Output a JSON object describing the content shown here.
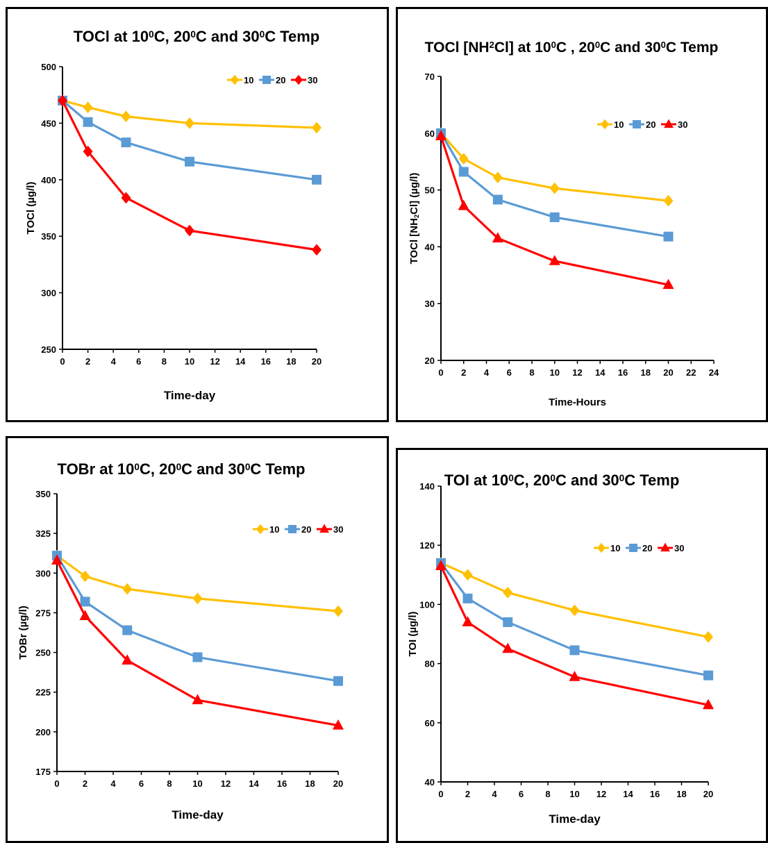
{
  "colors": {
    "s10": "#ffc000",
    "s20": "#5b9bd5",
    "s30": "#ff0000"
  },
  "chart_data": [
    {
      "type": "line",
      "title_parts": [
        "TOCl  at 10",
        "0",
        "C, 20",
        "0",
        "C and 30",
        "0",
        "C Temp"
      ],
      "xlabel": "Time-day",
      "ylabel": "TOCl (µg/l)",
      "xlim": [
        0,
        20
      ],
      "xticks": [
        0,
        2,
        4,
        6,
        8,
        10,
        12,
        14,
        16,
        18,
        20
      ],
      "ylim": [
        250,
        500
      ],
      "yticks": [
        250,
        300,
        350,
        400,
        450,
        500
      ],
      "x": [
        0,
        2,
        5,
        10,
        20
      ],
      "series": [
        {
          "name": "10",
          "values": [
            470,
            464,
            456,
            450,
            446
          ],
          "marker": "diamond"
        },
        {
          "name": "20",
          "values": [
            470,
            451,
            433,
            416,
            400
          ],
          "marker": "square"
        },
        {
          "name": "30",
          "values": [
            470,
            425,
            384,
            355,
            338
          ],
          "marker": "diamond"
        }
      ],
      "legend": "top-right"
    },
    {
      "type": "line",
      "title_parts": [
        "TOCl [NH",
        "2",
        "Cl]  at 10",
        "0",
        "C , 20",
        "0",
        "C and 30",
        "0",
        "C  Temp"
      ],
      "xlabel": "Time-Hours",
      "ylabel_parts": [
        "TOCl [NH",
        "2",
        "Cl] (µg/l)"
      ],
      "xlim": [
        0,
        24
      ],
      "xticks": [
        0,
        2,
        4,
        6,
        8,
        10,
        12,
        14,
        16,
        18,
        20,
        22,
        24
      ],
      "ylim": [
        20,
        70
      ],
      "yticks": [
        20,
        30,
        40,
        50,
        60,
        70
      ],
      "x": [
        0,
        2,
        5,
        10,
        20
      ],
      "series": [
        {
          "name": "10",
          "values": [
            60,
            55.5,
            52.2,
            50.3,
            48.1
          ],
          "marker": "diamond"
        },
        {
          "name": "20",
          "values": [
            60,
            53.2,
            48.3,
            45.2,
            41.8
          ],
          "marker": "square"
        },
        {
          "name": "30",
          "values": [
            59.5,
            47.2,
            41.5,
            37.5,
            33.3
          ],
          "marker": "triangle"
        }
      ],
      "legend": "top-right"
    },
    {
      "type": "line",
      "title_parts": [
        "TOBr at  10",
        "0",
        "C, 20",
        "0",
        "C and 30",
        "0",
        "C Temp"
      ],
      "xlabel": "Time-day",
      "ylabel": "TOBr  (µg/l)",
      "xlim": [
        0,
        20
      ],
      "xticks": [
        0,
        2,
        4,
        6,
        8,
        10,
        12,
        14,
        16,
        18,
        20
      ],
      "ylim": [
        175,
        350
      ],
      "yticks": [
        175,
        200,
        225,
        250,
        275,
        300,
        325,
        350
      ],
      "x": [
        0,
        2,
        5,
        10,
        20
      ],
      "series": [
        {
          "name": "10",
          "values": [
            311,
            298,
            290,
            284,
            276
          ],
          "marker": "diamond"
        },
        {
          "name": "20",
          "values": [
            311,
            282,
            264,
            247,
            232
          ],
          "marker": "square"
        },
        {
          "name": "30",
          "values": [
            308,
            273,
            245,
            220,
            204
          ],
          "marker": "triangle"
        }
      ],
      "legend": "top-right"
    },
    {
      "type": "line",
      "title_parts": [
        "TOI at 10",
        "0",
        "C, 20",
        "0",
        "C and 30",
        "0",
        "C Temp"
      ],
      "xlabel": "Time-day",
      "ylabel": "TOI  (µg/l)",
      "xlim": [
        0,
        20
      ],
      "xticks": [
        0,
        2,
        4,
        6,
        8,
        10,
        12,
        14,
        16,
        18,
        20
      ],
      "ylim": [
        40,
        140
      ],
      "yticks": [
        40,
        60,
        80,
        100,
        120,
        140
      ],
      "x": [
        0,
        2,
        5,
        10,
        20
      ],
      "series": [
        {
          "name": "10",
          "values": [
            114,
            110,
            104,
            98,
            89
          ],
          "marker": "diamond"
        },
        {
          "name": "20",
          "values": [
            114,
            102,
            94,
            84.5,
            76
          ],
          "marker": "square"
        },
        {
          "name": "30",
          "values": [
            113,
            94,
            85,
            75.5,
            66
          ],
          "marker": "triangle"
        }
      ],
      "legend": "top-right"
    }
  ]
}
